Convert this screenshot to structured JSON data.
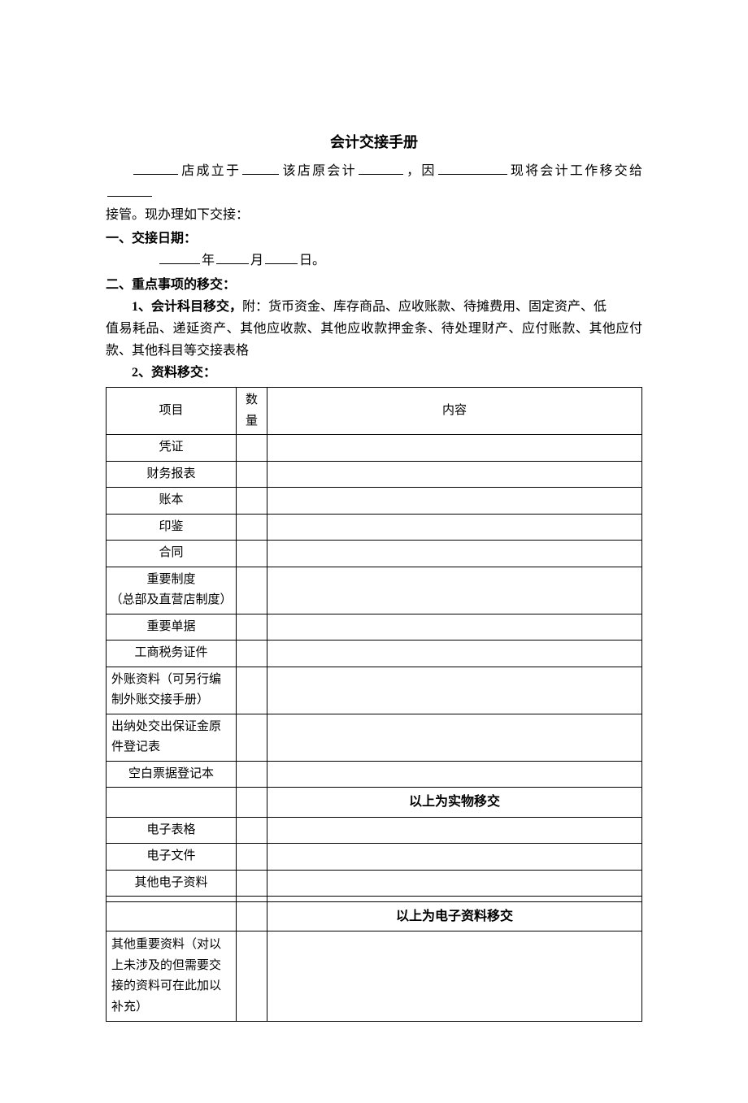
{
  "title": "会计交接手册",
  "intro": {
    "p1a": "店成立于",
    "p1b": "该店原会计",
    "p1c": "，因",
    "p1d": "现将会计工作移交给",
    "p2": "接管。现办理如下交接："
  },
  "section1": {
    "header": "一、交接日期：",
    "y": "年",
    "m": "月",
    "d": "日。"
  },
  "section2": {
    "header": "二、重点事项的移交：",
    "item1_lead": "1、会计科目移交，",
    "item1_body_a": "附：货币资金、库存商品、应收账款、待摊费用、固定资产、低",
    "item1_body_b": "值易耗品、递延资产、其他应收款、其他应收款押金条、待处理财产、应付账款、其他应付款、其他科目等交接表格",
    "item2_lead": "2、资料移交："
  },
  "table": {
    "headers": {
      "item": "项目",
      "qty_a": "数",
      "qty_b": "量",
      "content": "内容"
    },
    "rows_physical": [
      "凭证",
      "财务报表",
      "账本",
      "印鉴",
      "合同",
      "重要制度\n（总部及直营店制度）",
      "重要单据",
      "工商税务证件",
      "外账资料（可另行编制外账交接手册）",
      "出纳处交出保证金原件登记表",
      "空白票据登记本"
    ],
    "sep_physical": "以上为实物移交",
    "rows_electronic": [
      "电子表格",
      "电子文件",
      "其他电子资料",
      ""
    ],
    "sep_electronic": "以上为电子资料移交",
    "row_other": "其他重要资料（对以上未涉及的但需要交接的资料可在此加以补充）"
  }
}
